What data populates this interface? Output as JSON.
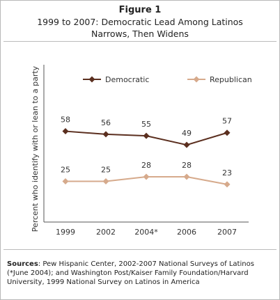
{
  "chart_data": {
    "type": "line",
    "figure_label": "Figure 1",
    "title": [
      "1999 to 2007: Democratic Lead Among Latinos",
      "Narrows, Then Widens"
    ],
    "y_label": "Percent who identify with or lean to a party",
    "categories": [
      "1999",
      "2002",
      "2004*",
      "2006",
      "2007"
    ],
    "series": [
      {
        "name": "Democratic",
        "color": "#5b2f1f",
        "values": [
          58,
          56,
          55,
          49,
          57
        ]
      },
      {
        "name": "Republican",
        "color": "#d6aa8c",
        "values": [
          25,
          25,
          28,
          28,
          23
        ]
      }
    ],
    "source_label": "Sources",
    "source_text": "Pew Hispanic Center, 2002-2007 National Surveys of Latinos (*June 2004); and Washington Post/Kaiser Family Foundation/Harvard University, 1999 National Survey on Latinos in America"
  }
}
